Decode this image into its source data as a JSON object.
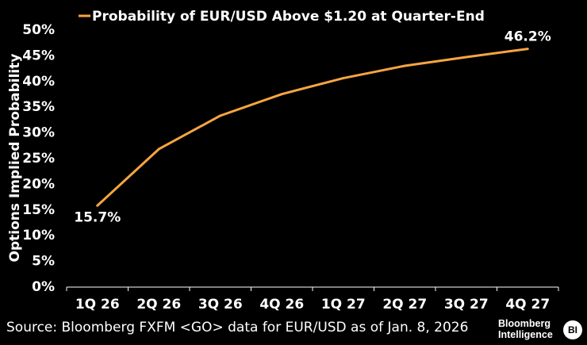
{
  "chart_data": {
    "type": "line",
    "title": "",
    "legend": {
      "label": "Probability of EUR/USD Above $1.20 at Quarter-End",
      "position": "top"
    },
    "xlabel": "",
    "ylabel": "Options Implied Probability",
    "categories": [
      "1Q 26",
      "2Q 26",
      "3Q 26",
      "4Q 26",
      "1Q 27",
      "2Q 27",
      "3Q 27",
      "4Q 27"
    ],
    "series": [
      {
        "name": "Probability of EUR/USD Above $1.20 at Quarter-End",
        "color": "#f7a541",
        "values": [
          15.7,
          26.7,
          33.2,
          37.4,
          40.5,
          42.9,
          44.6,
          46.2
        ]
      }
    ],
    "ylim": [
      0,
      50
    ],
    "yticks": [
      0,
      5,
      10,
      15,
      20,
      25,
      30,
      35,
      40,
      45,
      50
    ],
    "ytick_suffix": "%",
    "annotations": [
      {
        "index": 0,
        "text": "15.7%"
      },
      {
        "index": 7,
        "text": "46.2%"
      }
    ],
    "grid": false
  },
  "footer": {
    "source": "Source: Bloomberg FXFM <GO> data for EUR/USD as of Jan. 8, 2026",
    "brand_line1": "Bloomberg",
    "brand_line2": "Intelligence",
    "brand_badge": "BI"
  }
}
